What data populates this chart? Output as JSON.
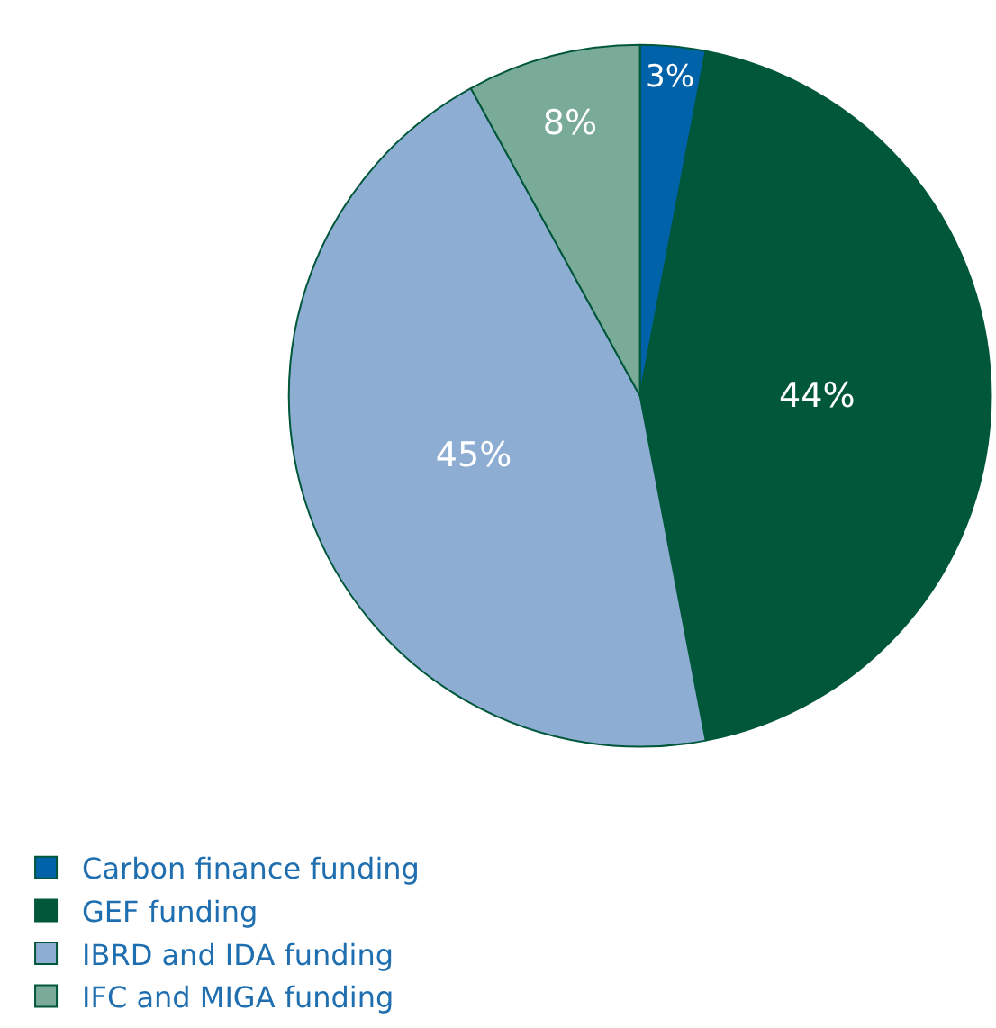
{
  "chart_data": {
    "type": "pie",
    "categories": [
      "Carbon finance funding",
      "GEF funding",
      "IBRD and IDA funding",
      "IFC and MIGA funding"
    ],
    "values": [
      3,
      44,
      45,
      8
    ],
    "colors": [
      "#0062a8",
      "#00573a",
      "#8dadd3",
      "#7aab98"
    ],
    "value_labels": [
      "3%",
      "44%",
      "45%",
      "8%"
    ],
    "legend": "bottom left"
  }
}
